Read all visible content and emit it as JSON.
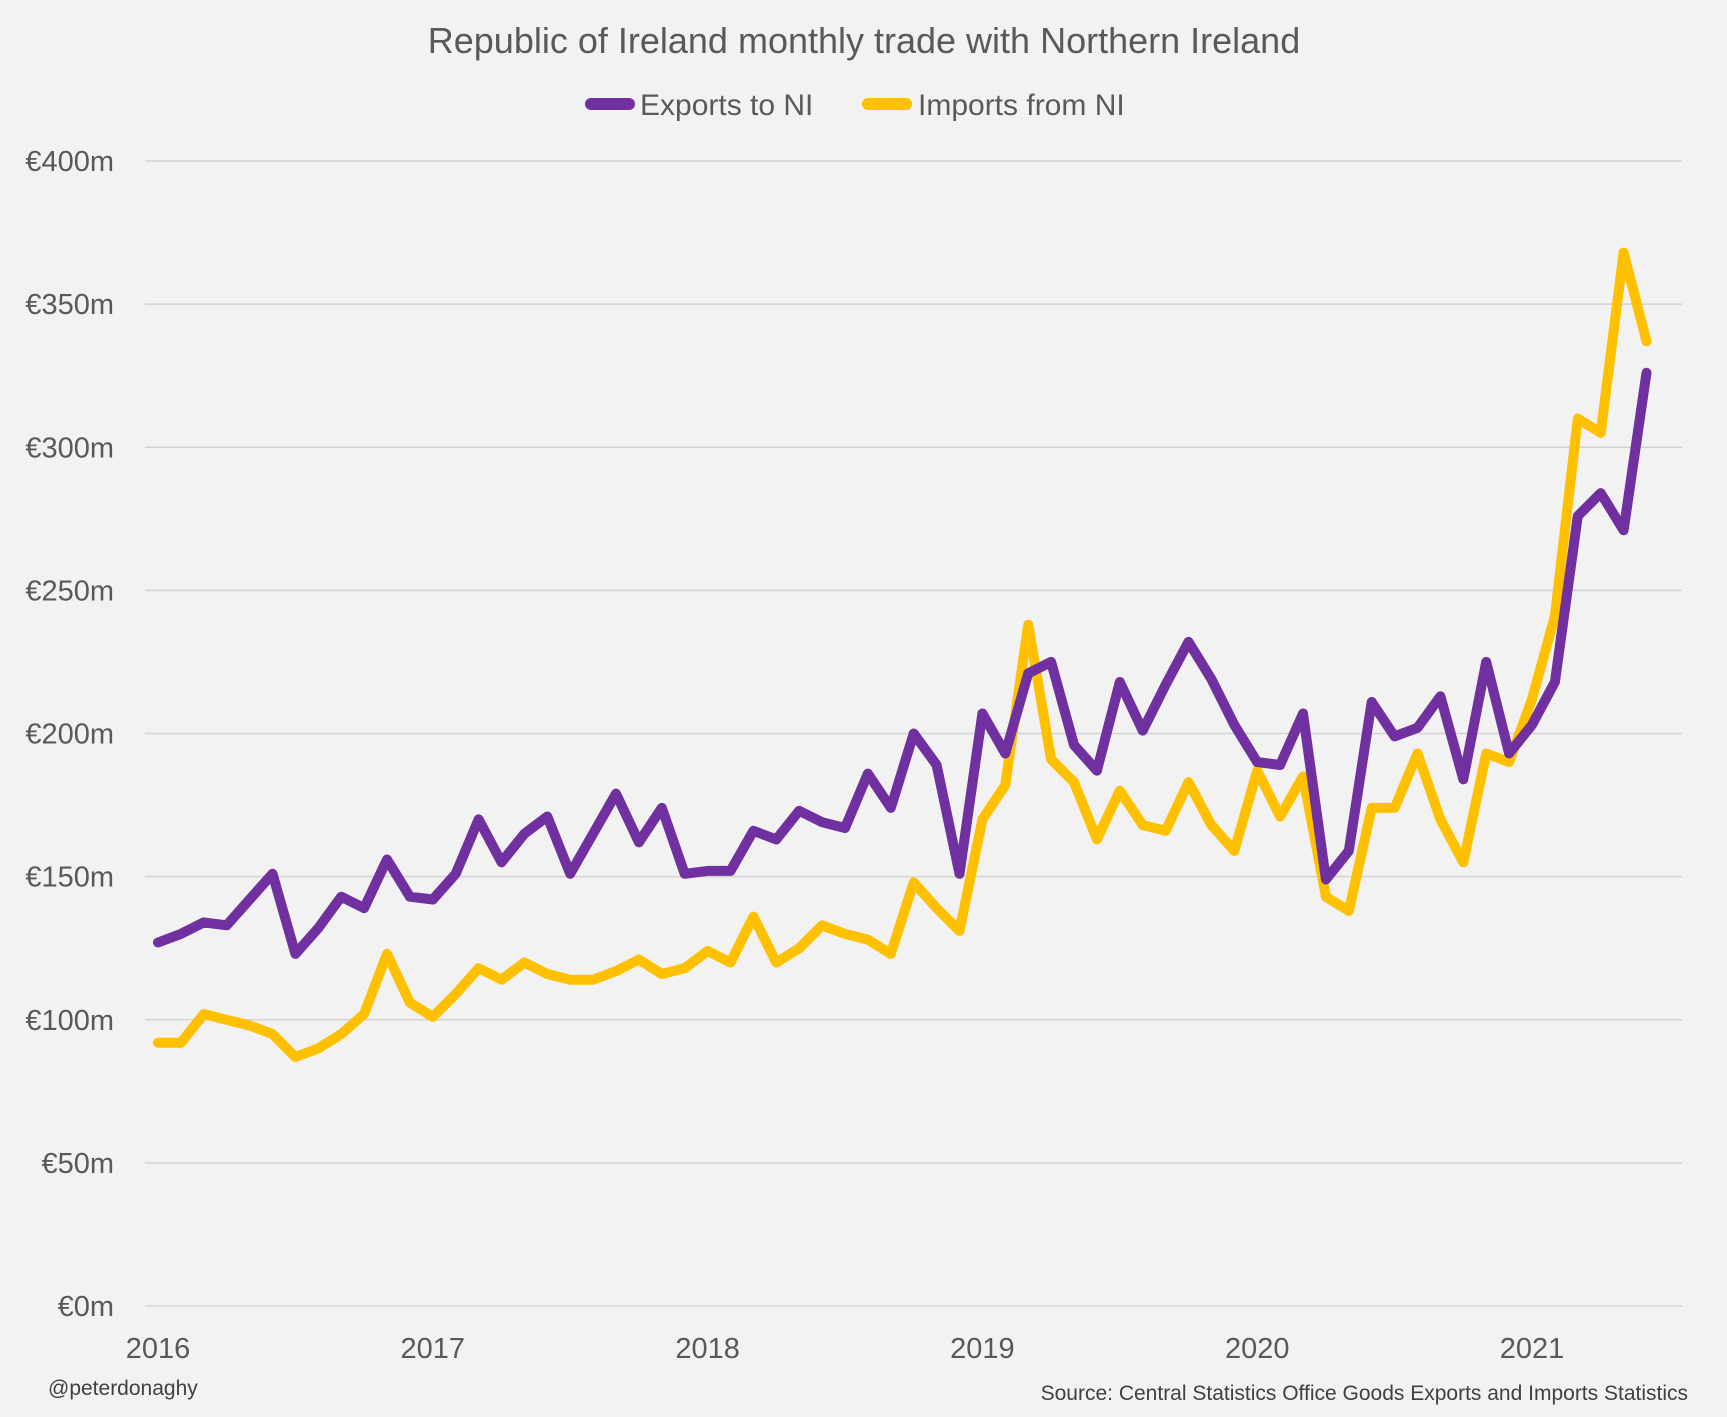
{
  "chart_data": {
    "type": "line",
    "title": "Republic of Ireland monthly trade with Northern Ireland",
    "xlabel": "",
    "ylabel": "",
    "x_start": "2016-01",
    "x_tick_labels": [
      "2016",
      "2017",
      "2018",
      "2019",
      "2020",
      "2021"
    ],
    "y_tick_values": [
      0,
      50,
      100,
      150,
      200,
      250,
      300,
      350,
      400
    ],
    "y_tick_labels": [
      "€0m",
      "€50m",
      "€100m",
      "€150m",
      "€200m",
      "€250m",
      "€300m",
      "€350m",
      "€400m"
    ],
    "ylim": [
      0,
      400
    ],
    "grid": true,
    "legend_position": "top",
    "series": [
      {
        "name": "Exports to NI",
        "color": "#7030a0",
        "values": [
          127,
          130,
          134,
          133,
          142,
          151,
          123,
          132,
          143,
          139,
          156,
          143,
          142,
          151,
          170,
          155,
          165,
          171,
          151,
          165,
          179,
          162,
          174,
          151,
          152,
          152,
          166,
          163,
          173,
          169,
          167,
          186,
          174,
          200,
          189,
          151,
          207,
          193,
          221,
          225,
          196,
          187,
          218,
          201,
          217,
          232,
          219,
          203,
          190,
          189,
          207,
          149,
          159,
          211,
          199,
          202,
          213,
          184,
          225,
          193,
          203,
          218,
          276,
          284,
          271,
          326
        ]
      },
      {
        "name": "Imports from NI",
        "color": "#ffc000",
        "values": [
          92,
          92,
          102,
          100,
          98,
          95,
          87,
          90,
          95,
          102,
          123,
          106,
          101,
          109,
          118,
          114,
          120,
          116,
          114,
          114,
          117,
          121,
          116,
          118,
          124,
          120,
          136,
          120,
          125,
          133,
          130,
          128,
          123,
          148,
          139,
          131,
          170,
          182,
          238,
          191,
          183,
          163,
          180,
          168,
          166,
          183,
          168,
          159,
          187,
          171,
          185,
          143,
          138,
          174,
          174,
          193,
          170,
          155,
          193,
          190,
          212,
          241,
          310,
          305,
          368,
          337
        ]
      }
    ]
  },
  "footer": {
    "credit": "@peterdonaghy",
    "source": "Source: Central Statistics Office Goods Exports and Imports Statistics"
  }
}
